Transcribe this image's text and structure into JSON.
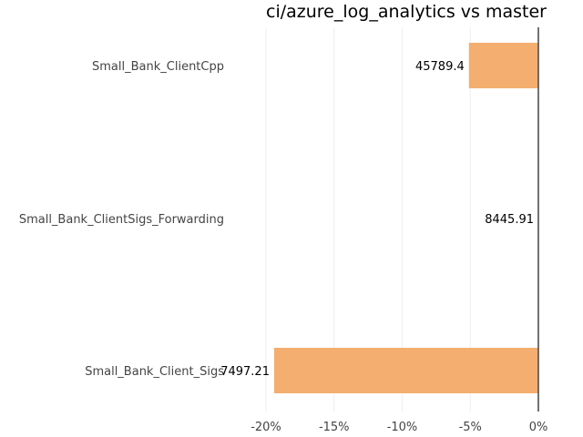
{
  "chart_data": {
    "type": "bar",
    "orientation": "horizontal",
    "title": "ci/azure_log_analytics vs master",
    "xlabel": "",
    "ylabel": "",
    "categories": [
      "Small_Bank_ClientCpp",
      "Small_Bank_ClientSigs_Forwarding",
      "Small_Bank_Client_Sigs"
    ],
    "values": [
      -5.1,
      0,
      -19.4
    ],
    "value_labels": [
      "45789.4",
      "8445.91",
      "7497.21"
    ],
    "xlim": [
      -20,
      0
    ],
    "xticks": [
      -20,
      -15,
      -10,
      -5,
      0
    ],
    "xtick_labels": [
      "-20%",
      "-15%",
      "-10%",
      "-5%",
      "0%"
    ],
    "bar_color": "#f4ae6f",
    "grid": true
  }
}
